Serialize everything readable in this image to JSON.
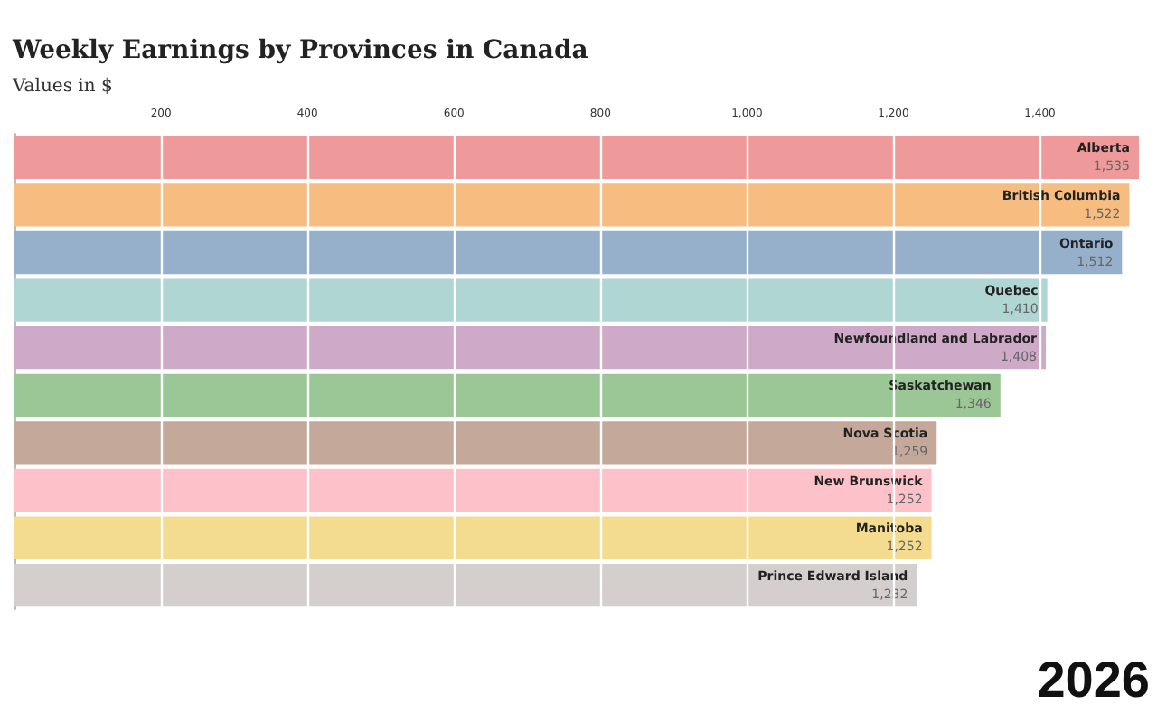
{
  "chart_data": {
    "type": "bar",
    "orientation": "horizontal",
    "title": "Weekly Earnings by Provinces in Canada",
    "subtitle": "Values in $",
    "categories": [
      "Alberta",
      "British Columbia",
      "Ontario",
      "Quebec",
      "Newfoundland and Labrador",
      "Saskatchewan",
      "Nova Scotia",
      "New Brunswick",
      "Manitoba",
      "Prince Edward Island"
    ],
    "values": [
      1535,
      1522,
      1512,
      1410,
      1408,
      1346,
      1259,
      1252,
      1252,
      1232
    ],
    "colors": [
      "#ee9a9a",
      "#f7bd80",
      "#96b0cc",
      "#b0d6d3",
      "#cfaac8",
      "#9ac795",
      "#c4a99b",
      "#fdc1ca",
      "#f3dc8f",
      "#d4cfcd"
    ],
    "xlim": [
      0,
      1540
    ],
    "xticks": [
      {
        "value": 200,
        "label": "200"
      },
      {
        "value": 400,
        "label": "400"
      },
      {
        "value": 600,
        "label": "600"
      },
      {
        "value": 800,
        "label": "800"
      },
      {
        "value": 1000,
        "label": "1,000"
      },
      {
        "value": 1200,
        "label": "1,200"
      },
      {
        "value": 1400,
        "label": "1,400"
      }
    ],
    "value_labels": [
      "1,535",
      "1,522",
      "1,512",
      "1,410",
      "1,408",
      "1,346",
      "1,259",
      "1,252",
      "1,252",
      "1,232"
    ],
    "grid": "x",
    "tick_labels": "x",
    "annotations": [
      "2026"
    ]
  }
}
